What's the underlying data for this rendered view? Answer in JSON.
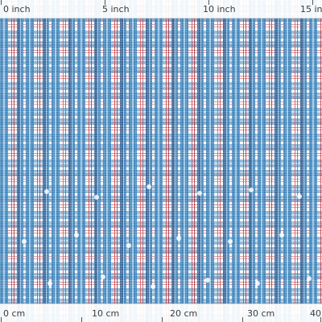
{
  "fabric": {
    "pattern": "plaid",
    "colors": {
      "background": "#ffffff",
      "blue": "#2f79b3",
      "light_blue": "#8fc3ea",
      "red": "#c8343e",
      "dark_red": "#9c2a39",
      "navy": "#26558b"
    }
  },
  "ruler_top": {
    "unit_labels": [
      "0 inch",
      "5 inch",
      "10 inch",
      "15 in"
    ]
  },
  "ruler_bottom": {
    "unit_labels": [
      "0 cm",
      "10 cm",
      "20 cm",
      "30 cm",
      "40"
    ]
  }
}
